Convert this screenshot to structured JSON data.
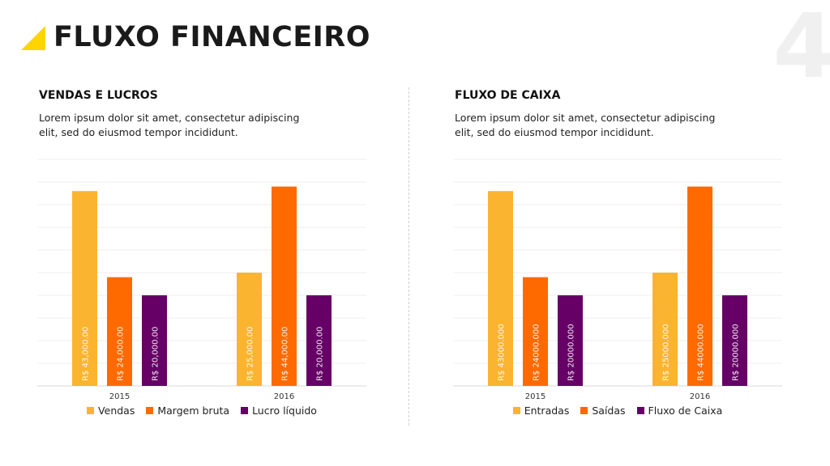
{
  "header": {
    "title": "FLUXO FINANCEIRO",
    "page_number": "4"
  },
  "colors": {
    "accent": "#FFD500",
    "yellow": "#FBB430",
    "orange": "#FF6A00",
    "purple": "#660066"
  },
  "panels": [
    {
      "title": "VENDAS E LUCROS",
      "description": "Lorem ipsum dolor sit amet, consectetur adipiscing elit, sed do eiusmod tempor incididunt."
    },
    {
      "title": "FLUXO DE CAIXA",
      "description": "Lorem ipsum dolor sit amet, consectetur adipiscing elit, sed do eiusmod tempor incididunt."
    }
  ],
  "chart_data": [
    {
      "type": "bar",
      "categories": [
        "2015",
        "2016"
      ],
      "series": [
        {
          "name": "Vendas",
          "color": "#FBB430",
          "values": [
            43000,
            25000
          ],
          "labels": [
            "R$ 43,000.00",
            "R$ 25,000.00"
          ]
        },
        {
          "name": "Margem bruta",
          "color": "#FF6A00",
          "values": [
            24000,
            44000
          ],
          "labels": [
            "R$ 24,000.00",
            "R$ 44,000.00"
          ]
        },
        {
          "name": "Lucro líquido",
          "color": "#660066",
          "values": [
            20000,
            20000
          ],
          "labels": [
            "R$ 20,000.00",
            "R$ 20,000.00"
          ]
        }
      ],
      "ylim": [
        0,
        50000
      ],
      "grid": true,
      "legend": "bottom"
    },
    {
      "type": "bar",
      "categories": [
        "2015",
        "2016"
      ],
      "series": [
        {
          "name": "Entradas",
          "color": "#FBB430",
          "values": [
            43000,
            25000
          ],
          "labels": [
            "R$ 43000.000",
            "R$ 25000.000"
          ]
        },
        {
          "name": "Saídas",
          "color": "#FF6A00",
          "values": [
            24000,
            44000
          ],
          "labels": [
            "R$ 24000.000",
            "R$ 44000.000"
          ]
        },
        {
          "name": "Fluxo de Caixa",
          "color": "#660066",
          "values": [
            20000,
            20000
          ],
          "labels": [
            "R$ 20000.000",
            "R$ 20000.000"
          ]
        }
      ],
      "ylim": [
        0,
        50000
      ],
      "grid": true,
      "legend": "bottom"
    }
  ]
}
